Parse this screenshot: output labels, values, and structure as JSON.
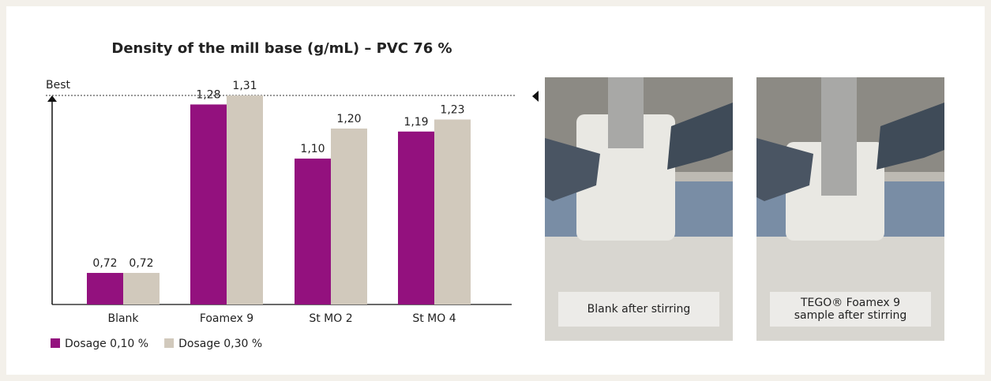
{
  "chart_data": {
    "type": "bar",
    "title": "Density of the mill base (g/mL) – PVC 76 %",
    "annotation": "Best",
    "categories": [
      "Blank",
      "Foamex 9",
      "St MO 2",
      "St MO 4"
    ],
    "series": [
      {
        "name": "Dosage 0,10 %",
        "color": "#93117e",
        "values": [
          0.72,
          1.28,
          1.1,
          1.19
        ],
        "value_labels": [
          "0,72",
          "1,28",
          "1,10",
          "1,19"
        ]
      },
      {
        "name": "Dosage 0,30 %",
        "color": "#d1c9bc",
        "values": [
          0.72,
          1.31,
          1.2,
          1.23
        ],
        "value_labels": [
          "0,72",
          "1,31",
          "1,20",
          "1,23"
        ]
      }
    ],
    "ylim": [
      0.615,
      1.31
    ]
  },
  "photos": [
    {
      "caption": [
        "Blank after stirring"
      ]
    },
    {
      "caption": [
        "TEGO® Foamex 9",
        "sample after stirring"
      ]
    }
  ]
}
